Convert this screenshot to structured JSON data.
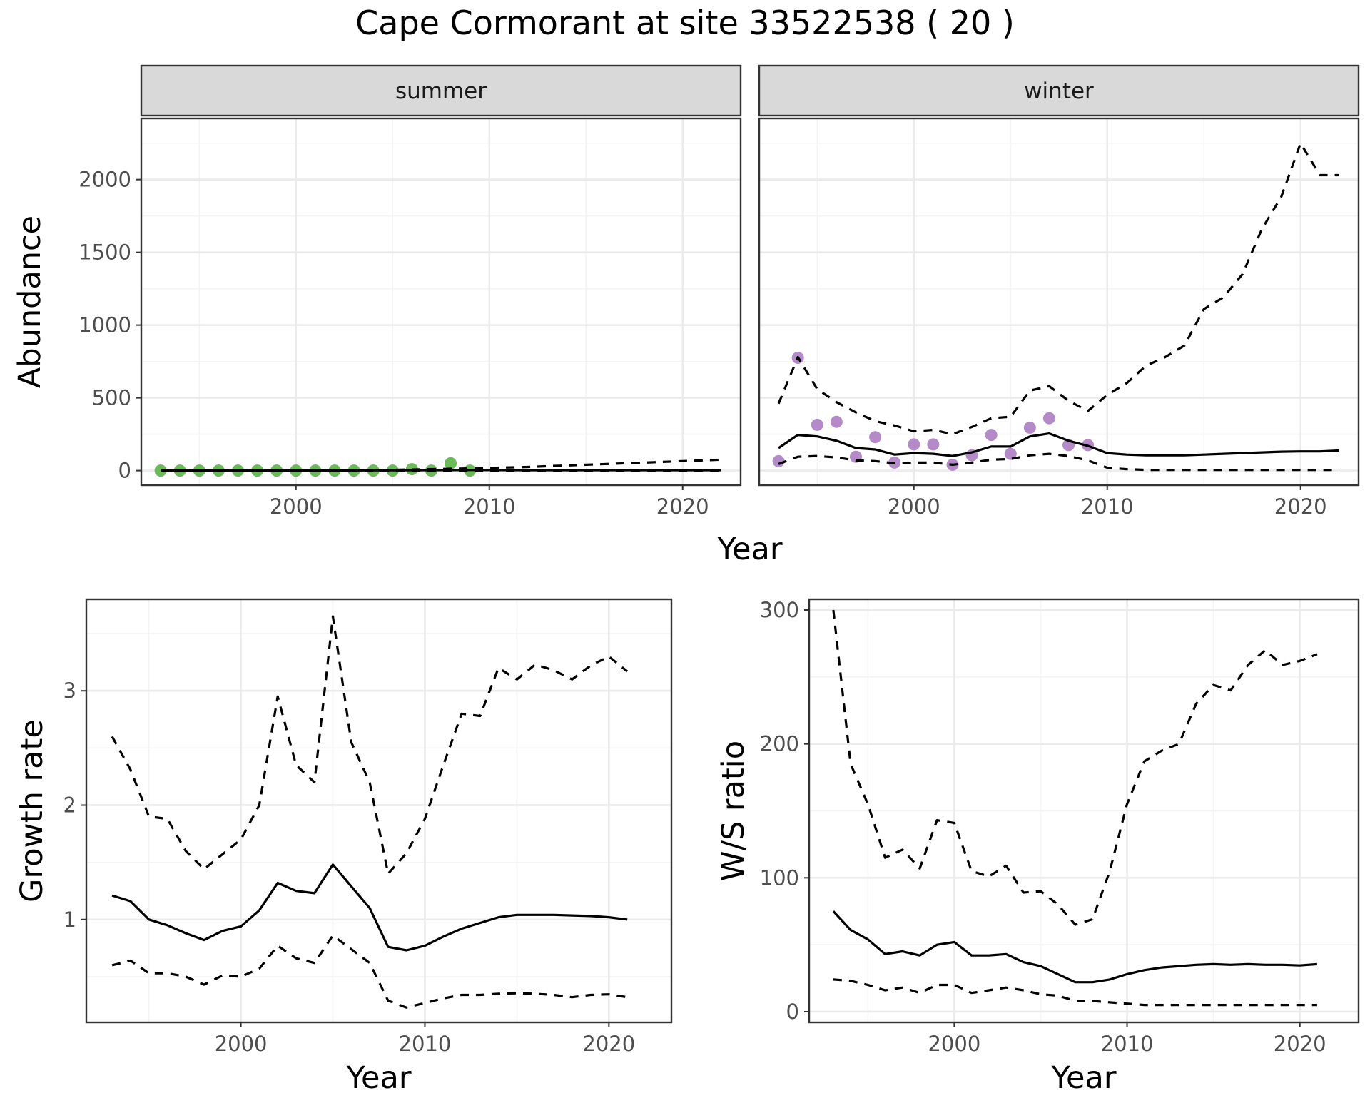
{
  "title": "Cape Cormorant at site 33522538 ( 20 )",
  "colors": {
    "summer_points": "#6aba5a",
    "winter_points": "#b48ac8",
    "lines": "#000000",
    "grid_major": "#ebebeb",
    "grid_minor": "#f4f4f4",
    "strip_bg": "#d9d9d9",
    "panel_border": "#333333"
  },
  "chart_data": [
    {
      "type": "line",
      "panel": "summer",
      "xlabel": "Year",
      "ylabel": "Abundance",
      "xlim": [
        1992,
        2023
      ],
      "ylim": [
        -100,
        2420
      ],
      "x_ticks": [
        2000,
        2010,
        2020
      ],
      "y_ticks": [
        0,
        500,
        1000,
        1500,
        2000
      ],
      "grid": true,
      "series": [
        {
          "role": "points",
          "x": [
            1993,
            1994,
            1995,
            1996,
            1997,
            1998,
            1999,
            2000,
            2001,
            2002,
            2003,
            2004,
            2005,
            2006,
            2007,
            2008,
            2009
          ],
          "y": [
            0,
            0,
            0,
            0,
            0,
            0,
            0,
            0,
            0,
            0,
            0,
            0,
            0,
            10,
            0,
            50,
            0
          ]
        },
        {
          "role": "estimate",
          "x": [
            1993,
            1995,
            2000,
            2005,
            2009,
            2012,
            2015,
            2018,
            2022
          ],
          "y": [
            0,
            0,
            0,
            2,
            4,
            3,
            3,
            3,
            3
          ]
        },
        {
          "role": "upper",
          "x": [
            1993,
            1995,
            2000,
            2005,
            2009,
            2012,
            2015,
            2018,
            2020,
            2022
          ],
          "y": [
            0,
            0,
            2,
            5,
            15,
            25,
            40,
            55,
            65,
            75
          ]
        },
        {
          "role": "lower",
          "x": [
            1993,
            2022
          ],
          "y": [
            0,
            0
          ]
        }
      ]
    },
    {
      "type": "line",
      "panel": "winter",
      "xlabel": "Year",
      "ylabel": "Abundance",
      "xlim": [
        1992,
        2023
      ],
      "ylim": [
        -100,
        2420
      ],
      "x_ticks": [
        2000,
        2010,
        2020
      ],
      "y_ticks": [
        0,
        500,
        1000,
        1500,
        2000
      ],
      "grid": true,
      "series": [
        {
          "role": "points",
          "x": [
            1993,
            1994,
            1995,
            1996,
            1997,
            1998,
            1999,
            2000,
            2001,
            2002,
            2003,
            2004,
            2005,
            2006,
            2007,
            2008,
            2009
          ],
          "y": [
            65,
            775,
            315,
            335,
            95,
            230,
            55,
            180,
            180,
            40,
            105,
            245,
            115,
            295,
            360,
            175,
            175
          ]
        },
        {
          "role": "estimate",
          "x": [
            1993,
            1994,
            1995,
            1996,
            1997,
            1998,
            1999,
            2000,
            2001,
            2002,
            2003,
            2004,
            2005,
            2006,
            2007,
            2008,
            2009,
            2010,
            2011,
            2012,
            2013,
            2014,
            2015,
            2016,
            2017,
            2018,
            2019,
            2020,
            2021,
            2022
          ],
          "y": [
            155,
            245,
            235,
            205,
            155,
            145,
            110,
            120,
            115,
            100,
            125,
            165,
            165,
            235,
            255,
            205,
            170,
            120,
            110,
            105,
            105,
            105,
            110,
            115,
            120,
            125,
            130,
            132,
            132,
            138
          ]
        },
        {
          "role": "upper",
          "x": [
            1993,
            1994,
            1995,
            1996,
            1997,
            1998,
            1999,
            2000,
            2001,
            2002,
            2003,
            2004,
            2005,
            2006,
            2007,
            2008,
            2009,
            2010,
            2011,
            2012,
            2013,
            2014,
            2015,
            2016,
            2017,
            2018,
            2019,
            2020,
            2021,
            2022
          ],
          "y": [
            460,
            780,
            560,
            470,
            400,
            340,
            310,
            270,
            280,
            250,
            300,
            360,
            370,
            550,
            580,
            480,
            410,
            520,
            600,
            720,
            780,
            860,
            1110,
            1190,
            1350,
            1660,
            1880,
            2250,
            2030,
            2030
          ]
        },
        {
          "role": "lower",
          "x": [
            1993,
            1994,
            1995,
            1996,
            1997,
            1998,
            1999,
            2000,
            2001,
            2002,
            2003,
            2004,
            2005,
            2006,
            2007,
            2008,
            2009,
            2010,
            2011,
            2012,
            2014,
            2016,
            2018,
            2020,
            2022
          ],
          "y": [
            45,
            95,
            100,
            90,
            70,
            65,
            50,
            55,
            55,
            40,
            55,
            75,
            80,
            105,
            115,
            100,
            70,
            20,
            10,
            5,
            5,
            5,
            5,
            5,
            5
          ]
        }
      ]
    },
    {
      "type": "line",
      "panel": "growth",
      "xlabel": "Year",
      "ylabel": "Growth rate",
      "xlim": [
        1991.6,
        2023.4
      ],
      "ylim": [
        0.1,
        3.8
      ],
      "x_ticks": [
        2000,
        2010,
        2020
      ],
      "y_ticks": [
        1,
        2,
        3
      ],
      "grid": true,
      "series": [
        {
          "role": "estimate",
          "x": [
            1993,
            1994,
            1995,
            1996,
            1997,
            1998,
            1999,
            2000,
            2001,
            2002,
            2003,
            2004,
            2005,
            2006,
            2007,
            2008,
            2009,
            2010,
            2011,
            2012,
            2013,
            2014,
            2015,
            2016,
            2017,
            2018,
            2019,
            2020,
            2021
          ],
          "y": [
            1.21,
            1.16,
            1.0,
            0.95,
            0.88,
            0.82,
            0.9,
            0.94,
            1.08,
            1.32,
            1.25,
            1.23,
            1.48,
            1.29,
            1.1,
            0.76,
            0.73,
            0.77,
            0.85,
            0.92,
            0.97,
            1.02,
            1.04,
            1.04,
            1.04,
            1.035,
            1.03,
            1.02,
            1.0
          ]
        },
        {
          "role": "upper",
          "x": [
            1993,
            1994,
            1995,
            1996,
            1997,
            1998,
            1999,
            2000,
            2001,
            2002,
            2003,
            2004,
            2005,
            2006,
            2007,
            2008,
            2009,
            2010,
            2011,
            2012,
            2013,
            2014,
            2015,
            2016,
            2017,
            2018,
            2019,
            2020,
            2021
          ],
          "y": [
            2.6,
            2.31,
            1.9,
            1.88,
            1.6,
            1.44,
            1.57,
            1.7,
            2.0,
            2.95,
            2.35,
            2.2,
            3.65,
            2.55,
            2.2,
            1.4,
            1.58,
            1.88,
            2.35,
            2.8,
            2.78,
            3.2,
            3.1,
            3.23,
            3.18,
            3.1,
            3.22,
            3.3,
            3.17
          ]
        },
        {
          "role": "lower",
          "x": [
            1993,
            1994,
            1995,
            1996,
            1997,
            1998,
            1999,
            2000,
            2001,
            2002,
            2003,
            2004,
            2005,
            2006,
            2007,
            2008,
            2009,
            2010,
            2011,
            2012,
            2013,
            2014,
            2015,
            2016,
            2017,
            2018,
            2019,
            2020,
            2021
          ],
          "y": [
            0.6,
            0.64,
            0.53,
            0.53,
            0.5,
            0.43,
            0.51,
            0.5,
            0.57,
            0.77,
            0.66,
            0.62,
            0.86,
            0.74,
            0.62,
            0.29,
            0.23,
            0.27,
            0.31,
            0.34,
            0.34,
            0.35,
            0.355,
            0.35,
            0.34,
            0.32,
            0.34,
            0.345,
            0.32
          ]
        }
      ]
    },
    {
      "type": "line",
      "panel": "ratio",
      "xlabel": "Year",
      "ylabel": "W/S ratio",
      "xlim": [
        1991.6,
        2023.4
      ],
      "ylim": [
        -8,
        308
      ],
      "x_ticks": [
        2000,
        2010,
        2020
      ],
      "y_ticks": [
        0,
        100,
        200,
        300
      ],
      "grid": true,
      "series": [
        {
          "role": "estimate",
          "x": [
            1993,
            1994,
            1995,
            1996,
            1997,
            1998,
            1999,
            2000,
            2001,
            2002,
            2003,
            2004,
            2005,
            2006,
            2007,
            2008,
            2009,
            2010,
            2011,
            2012,
            2013,
            2014,
            2015,
            2016,
            2017,
            2018,
            2019,
            2020,
            2021
          ],
          "y": [
            75,
            61,
            54,
            43,
            45,
            42,
            50,
            52,
            42,
            42,
            43,
            37,
            34,
            28,
            22,
            22,
            24,
            28,
            31,
            33,
            34,
            35,
            35.5,
            35,
            35.5,
            35,
            35,
            34.5,
            35.5
          ]
        },
        {
          "role": "upper",
          "x": [
            1993,
            1994,
            1995,
            1996,
            1997,
            1998,
            1999,
            2000,
            2001,
            2002,
            2003,
            2004,
            2005,
            2006,
            2007,
            2008,
            2009,
            2010,
            2011,
            2012,
            2013,
            2014,
            2015,
            2016,
            2017,
            2018,
            2019,
            2020,
            2021
          ],
          "y": [
            300,
            185,
            155,
            115,
            121,
            107,
            143,
            141,
            105,
            101,
            109,
            89,
            90,
            80,
            65,
            69,
            105,
            155,
            187,
            195,
            200,
            230,
            244,
            240,
            259,
            270,
            259,
            262,
            267
          ]
        },
        {
          "role": "lower",
          "x": [
            1993,
            1994,
            1995,
            1996,
            1997,
            1998,
            1999,
            2000,
            2001,
            2002,
            2003,
            2004,
            2005,
            2006,
            2007,
            2008,
            2009,
            2010,
            2011,
            2012,
            2014,
            2016,
            2018,
            2020,
            2021
          ],
          "y": [
            24,
            23,
            20,
            16,
            18,
            14,
            20,
            20,
            14,
            16,
            18,
            16,
            13,
            12,
            8,
            8,
            7,
            6,
            5,
            5,
            5,
            5,
            5,
            5,
            5
          ]
        }
      ]
    }
  ]
}
